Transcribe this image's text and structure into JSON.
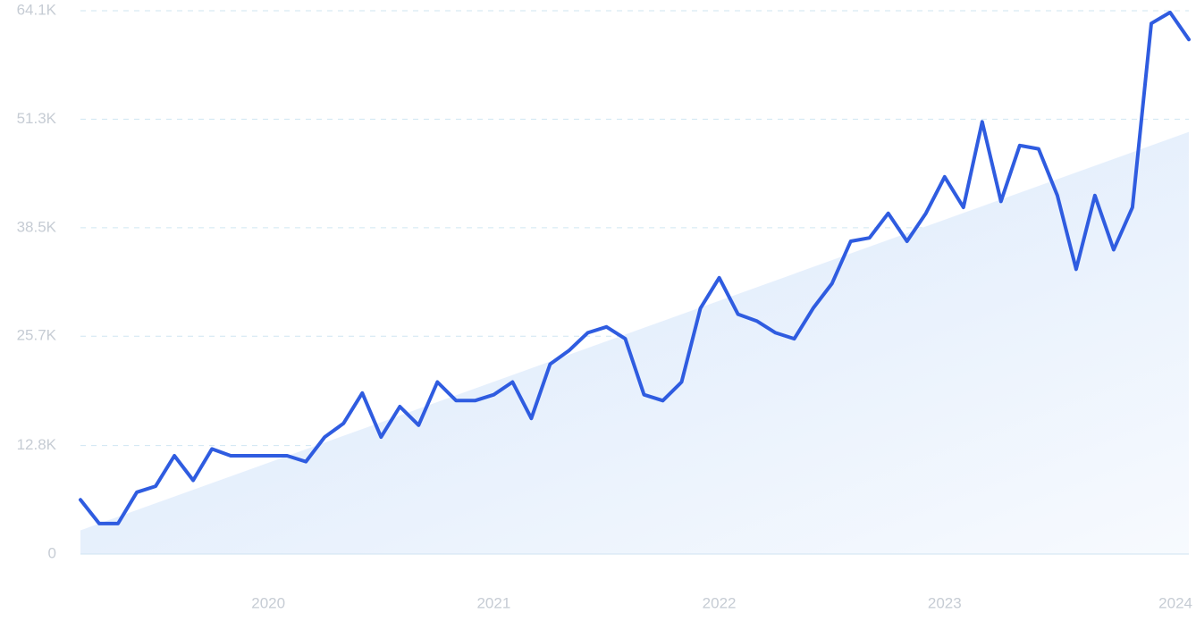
{
  "chart_data": {
    "type": "line",
    "title": "",
    "xlabel": "",
    "ylabel": "",
    "ylim": [
      0,
      64100
    ],
    "grid": true,
    "legend": "none",
    "yticks": [
      {
        "value": 0,
        "label": "0"
      },
      {
        "value": 12800,
        "label": "12.8K"
      },
      {
        "value": 25700,
        "label": "25.7K"
      },
      {
        "value": 38500,
        "label": "38.5K"
      },
      {
        "value": 51300,
        "label": "51.3K"
      },
      {
        "value": 64100,
        "label": "64.1K"
      }
    ],
    "xticks": [
      {
        "value": "2020-01",
        "label": "2020"
      },
      {
        "value": "2021-01",
        "label": "2021"
      },
      {
        "value": "2022-01",
        "label": "2022"
      },
      {
        "value": "2023-01",
        "label": "2023"
      },
      {
        "value": "2024-01",
        "label": "2024"
      }
    ],
    "series": [
      {
        "role": "actual",
        "color": "#2f5ce0",
        "x": [
          "2019-03",
          "2019-04",
          "2019-05",
          "2019-06",
          "2019-07",
          "2019-08",
          "2019-09",
          "2019-10",
          "2019-11",
          "2019-12",
          "2020-01",
          "2020-02",
          "2020-03",
          "2020-04",
          "2020-05",
          "2020-06",
          "2020-07",
          "2020-08",
          "2020-09",
          "2020-10",
          "2020-11",
          "2020-12",
          "2021-01",
          "2021-02",
          "2021-03",
          "2021-04",
          "2021-05",
          "2021-06",
          "2021-07",
          "2021-08",
          "2021-09",
          "2021-10",
          "2021-11",
          "2021-12",
          "2022-01",
          "2022-02",
          "2022-03",
          "2022-04",
          "2022-05",
          "2022-06",
          "2022-07",
          "2022-08",
          "2022-09",
          "2022-10",
          "2022-11",
          "2022-12",
          "2023-01",
          "2023-02",
          "2023-03",
          "2023-04",
          "2023-05",
          "2023-06",
          "2023-07",
          "2023-08",
          "2023-09",
          "2023-10",
          "2023-11",
          "2023-12",
          "2024-01",
          "2024-02"
        ],
        "values": [
          6400,
          3600,
          3600,
          7300,
          8000,
          11600,
          8700,
          12400,
          11600,
          11600,
          11600,
          11600,
          10900,
          13800,
          15400,
          19000,
          13800,
          17400,
          15200,
          20300,
          18100,
          18100,
          18800,
          20300,
          16000,
          22400,
          24000,
          26100,
          26800,
          25400,
          18800,
          18100,
          20300,
          29000,
          32600,
          28300,
          27500,
          26100,
          25400,
          29000,
          31900,
          36900,
          37300,
          40200,
          36900,
          40200,
          44500,
          40900,
          51000,
          41600,
          48200,
          47800,
          42300,
          33600,
          42300,
          35900,
          40900,
          62600,
          63900,
          60700
        ]
      },
      {
        "role": "trend",
        "color": "#dce9fb",
        "x": [
          "2019-03",
          "2024-02"
        ],
        "values": [
          2800,
          49800
        ]
      }
    ]
  }
}
